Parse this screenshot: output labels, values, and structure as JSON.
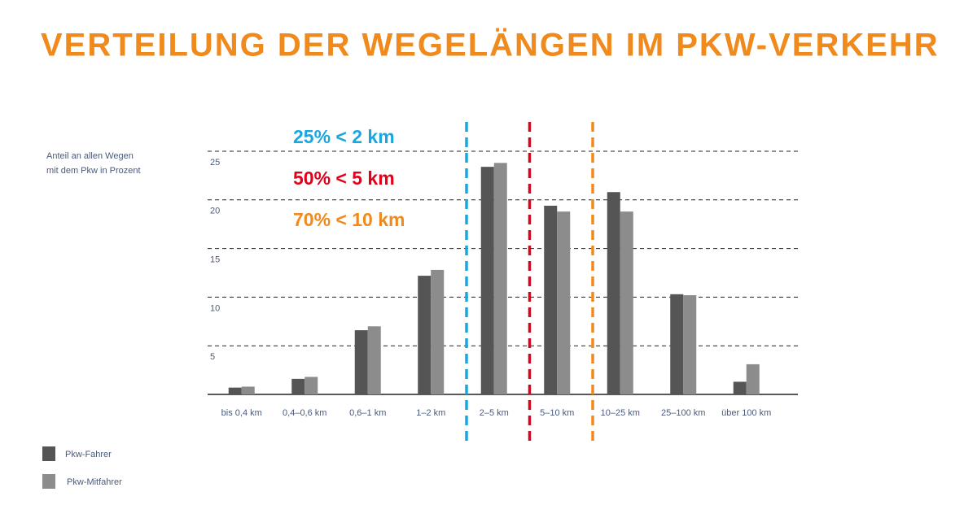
{
  "chart_data": {
    "type": "bar",
    "title": "VERTEILUNG DER WEGELÄNGEN IM PKW-VERKEHR",
    "y_label": [
      "Anteil an allen Wegen",
      "mit dem Pkw in Prozent"
    ],
    "categories": [
      "bis 0,4 km",
      "0,4–0,6 km",
      "0,6–1 km",
      "1–2 km",
      "2–5 km",
      "5–10 km",
      "10–25 km",
      "25–100 km",
      "über 100 km"
    ],
    "series": [
      {
        "name": "Pkw-Fahrer",
        "color": "#555555",
        "values": [
          0.7,
          1.6,
          6.6,
          12.2,
          23.4,
          19.4,
          20.8,
          10.3,
          1.3
        ]
      },
      {
        "name": "Pkw-Mitfahrer",
        "color": "#8c8c8c",
        "values": [
          0.8,
          1.8,
          7.0,
          12.8,
          23.8,
          18.8,
          18.8,
          10.2,
          3.1
        ]
      }
    ],
    "ylim": [
      0,
      25
    ],
    "yticks": [
      5,
      10,
      15,
      20,
      25
    ],
    "grid": true,
    "annotations": [
      {
        "text": "25% < 2 km",
        "color": "#1aa7e0"
      },
      {
        "text": "50% < 5 km",
        "color": "#e2001a"
      },
      {
        "text": "70% < 10 km",
        "color": "#f08a1c"
      }
    ]
  }
}
